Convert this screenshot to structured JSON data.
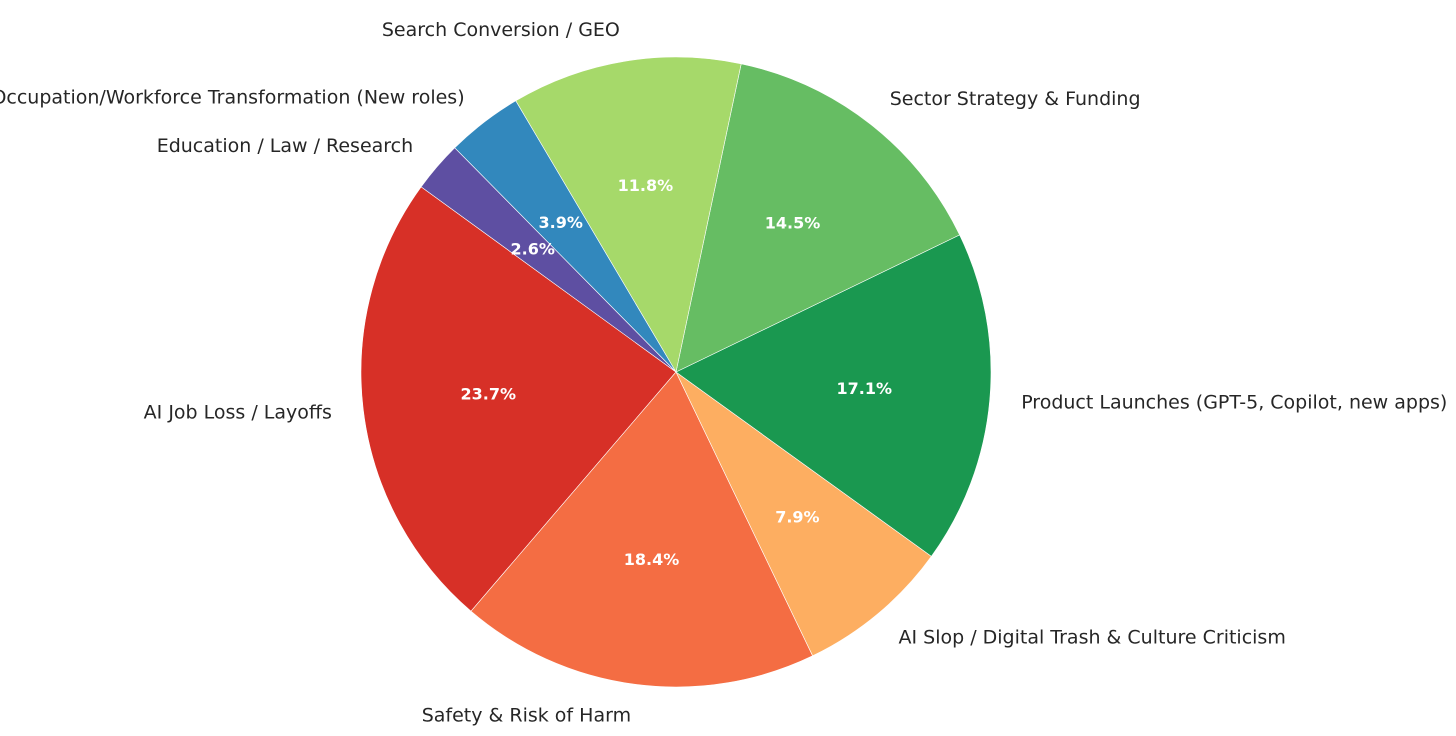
{
  "chart_data": {
    "type": "pie",
    "title": "",
    "start_angle_deg": 144,
    "direction": "counterclockwise",
    "slices": [
      {
        "label": "AI Job Loss / Layoffs",
        "value": 23.7,
        "pct_label": "23.7%",
        "color": "#d73027"
      },
      {
        "label": "Safety & Risk of Harm",
        "value": 18.4,
        "pct_label": "18.4%",
        "color": "#f46d43"
      },
      {
        "label": "AI Slop / Digital Trash & Culture Criticism",
        "value": 7.9,
        "pct_label": "7.9%",
        "color": "#fdae61"
      },
      {
        "label": "Product Launches (GPT-5, Copilot, new apps)",
        "value": 17.1,
        "pct_label": "17.1%",
        "color": "#1a9850"
      },
      {
        "label": "Sector Strategy & Funding",
        "value": 14.5,
        "pct_label": "14.5%",
        "color": "#66bd63"
      },
      {
        "label": "Search Conversion / GEO",
        "value": 11.8,
        "pct_label": "11.8%",
        "color": "#a6d96a"
      },
      {
        "label": "Occupation/Workforce Transformation (New roles)",
        "value": 3.9,
        "pct_label": "3.9%",
        "color": "#3288bd"
      },
      {
        "label": "Education / Law / Research",
        "value": 2.6,
        "pct_label": "2.6%",
        "color": "#5e4fa2"
      }
    ]
  }
}
